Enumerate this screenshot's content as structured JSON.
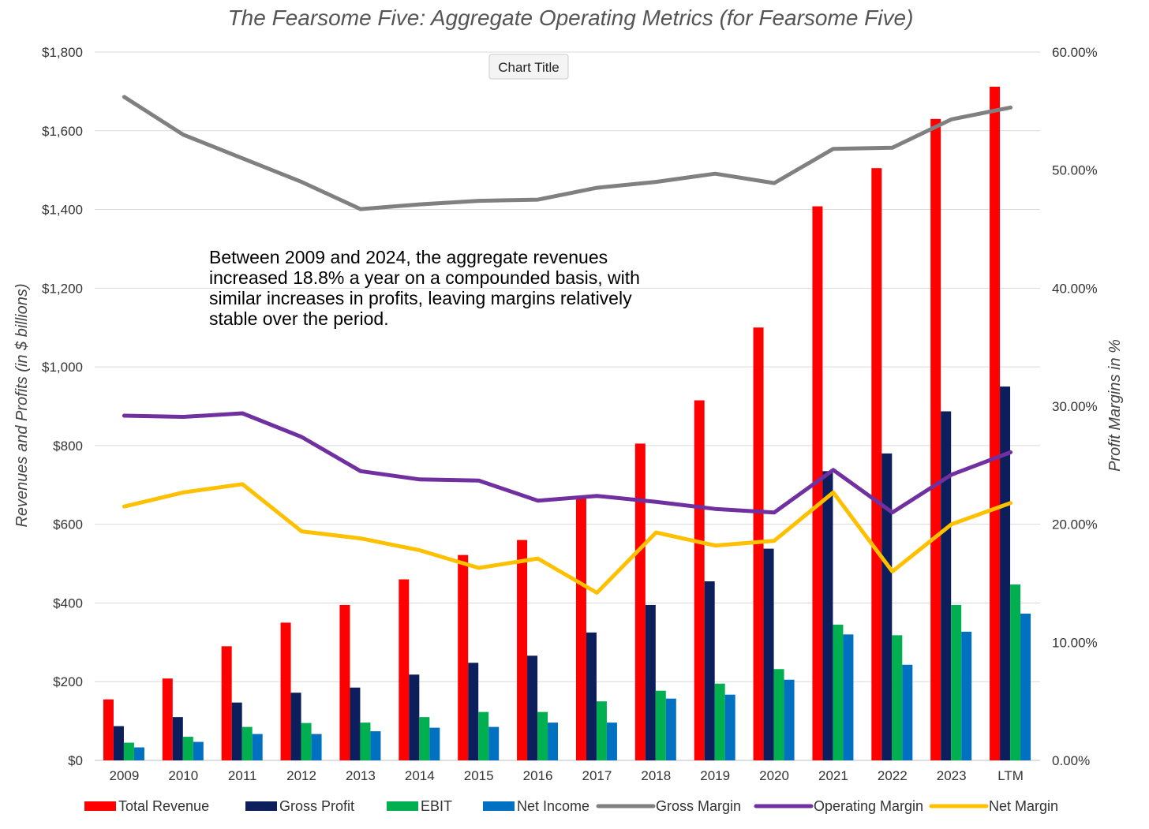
{
  "chart_data": {
    "type": "bar",
    "title": "The Fearsome Five: Aggregate Operating Metrics (for Fearsome Five)",
    "chart_title_box": "Chart Title",
    "annotation": [
      "Between 2009 and 2024, the aggregate revenues",
      "increased 18.8% a year on a compounded basis, with",
      "similar increases in profits, leaving margins relatively",
      "stable over the period."
    ],
    "ylabel": "Revenues and Profits (in $ billions)",
    "y2label": "Profit Margins in %",
    "ylim": [
      0,
      1800
    ],
    "y2lim": [
      0,
      60
    ],
    "y_ticks": [
      0,
      200,
      400,
      600,
      800,
      1000,
      1200,
      1400,
      1600,
      1800
    ],
    "y_tick_labels": [
      "$0",
      "$200",
      "$400",
      "$600",
      "$800",
      "$1,000",
      "$1,200",
      "$1,400",
      "$1,600",
      "$1,800"
    ],
    "y2_ticks": [
      0,
      10,
      20,
      30,
      40,
      50,
      60
    ],
    "y2_tick_labels": [
      "0.00%",
      "10.00%",
      "20.00%",
      "30.00%",
      "40.00%",
      "50.00%",
      "60.00%"
    ],
    "grid": true,
    "legend_position": "bottom",
    "categories": [
      "2009",
      "2010",
      "2011",
      "2012",
      "2013",
      "2014",
      "2015",
      "2016",
      "2017",
      "2018",
      "2019",
      "2020",
      "2021",
      "2022",
      "2023",
      "LTM"
    ],
    "bar_series": [
      {
        "name": "Total Revenue",
        "color": "#ff0000",
        "values": [
          155,
          208,
          290,
          350,
          395,
          460,
          522,
          560,
          670,
          805,
          915,
          1100,
          1408,
          1505,
          1630,
          1712
        ]
      },
      {
        "name": "Gross Profit",
        "color": "#0c1f5c",
        "values": [
          87,
          110,
          147,
          172,
          185,
          218,
          248,
          266,
          325,
          395,
          455,
          538,
          735,
          780,
          887,
          950
        ]
      },
      {
        "name": "EBIT",
        "color": "#00b050",
        "values": [
          45,
          60,
          85,
          95,
          96,
          110,
          123,
          123,
          150,
          177,
          195,
          232,
          345,
          318,
          395,
          447
        ]
      },
      {
        "name": "Net Income",
        "color": "#0070c0",
        "values": [
          33,
          47,
          67,
          67,
          74,
          83,
          85,
          96,
          96,
          157,
          167,
          205,
          320,
          243,
          327,
          373
        ]
      }
    ],
    "line_series": [
      {
        "name": "Gross Margin",
        "color": "#808080",
        "values": [
          56.2,
          53.0,
          51.0,
          49.0,
          46.7,
          47.1,
          47.4,
          47.5,
          48.5,
          49.0,
          49.7,
          48.9,
          51.8,
          51.9,
          54.3,
          55.3
        ]
      },
      {
        "name": "Operating Margin",
        "color": "#7030a0",
        "values": [
          29.2,
          29.1,
          29.4,
          27.4,
          24.5,
          23.8,
          23.7,
          22.0,
          22.4,
          21.9,
          21.3,
          21.0,
          24.6,
          21.0,
          24.2,
          26.1
        ]
      },
      {
        "name": "Net Margin",
        "color": "#ffc000",
        "values": [
          21.5,
          22.7,
          23.4,
          19.4,
          18.8,
          17.8,
          16.3,
          17.1,
          14.2,
          19.3,
          18.2,
          18.6,
          22.7,
          16.0,
          20.0,
          21.8
        ]
      }
    ]
  }
}
